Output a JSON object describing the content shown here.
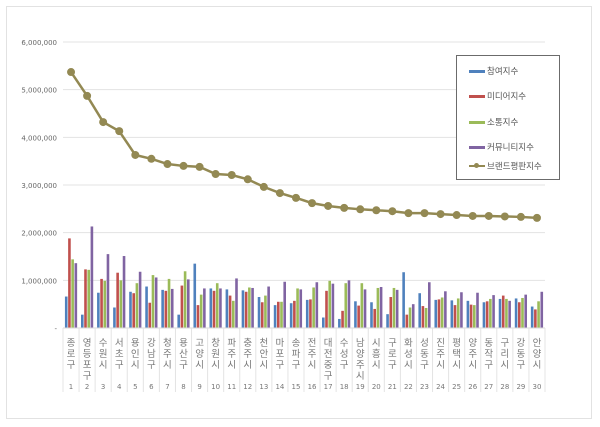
{
  "chart_data": {
    "type": "bar+line",
    "title": "",
    "xlabel": "",
    "ylabel": "",
    "ylim": [
      0,
      6000000
    ],
    "yticks": [
      "-",
      "1,000,000",
      "2,000,000",
      "3,000,000",
      "4,000,000",
      "5,000,000",
      "6,000,000"
    ],
    "grid": true,
    "legend_position": "top-right",
    "categories": [
      "종로구",
      "영등포구",
      "수원시",
      "서초구",
      "용인시",
      "강남구",
      "청주시",
      "용산구",
      "고양시",
      "창원시",
      "파주시",
      "충주시",
      "천안시",
      "마포구",
      "송파구",
      "전주시",
      "대전 중구",
      "수성구",
      "남양주시",
      "시흥시",
      "구로구",
      "화성시",
      "성동구",
      "진주시",
      "평택시",
      "양주시",
      "동작구",
      "구리시",
      "강동구",
      "안양시"
    ],
    "ranks": [
      "1",
      "2",
      "3",
      "4",
      "5",
      "6",
      "7",
      "8",
      "9",
      "10",
      "11",
      "12",
      "13",
      "14",
      "15",
      "16",
      "17",
      "18",
      "19",
      "20",
      "21",
      "22",
      "23",
      "24",
      "25",
      "26",
      "27",
      "28",
      "29",
      "30"
    ],
    "series": [
      {
        "name": "참여지수",
        "type": "bar",
        "color": "#4f81bd",
        "values": [
          660000,
          280000,
          740000,
          430000,
          760000,
          870000,
          800000,
          280000,
          1350000,
          830000,
          810000,
          790000,
          650000,
          480000,
          520000,
          590000,
          220000,
          190000,
          560000,
          540000,
          290000,
          1170000,
          730000,
          590000,
          580000,
          570000,
          540000,
          610000,
          620000,
          450000
        ]
      },
      {
        "name": "미디어지수",
        "type": "bar",
        "color": "#c0504d",
        "values": [
          1880000,
          1230000,
          1030000,
          1160000,
          730000,
          530000,
          780000,
          890000,
          480000,
          780000,
          680000,
          760000,
          540000,
          550000,
          570000,
          600000,
          780000,
          360000,
          470000,
          400000,
          650000,
          280000,
          460000,
          600000,
          480000,
          490000,
          560000,
          680000,
          540000,
          390000
        ]
      },
      {
        "name": "소통지수",
        "type": "bar",
        "color": "#9bbb59",
        "values": [
          1440000,
          1220000,
          990000,
          1000000,
          940000,
          1110000,
          1030000,
          1190000,
          700000,
          940000,
          570000,
          850000,
          680000,
          550000,
          830000,
          850000,
          990000,
          940000,
          940000,
          840000,
          840000,
          430000,
          420000,
          640000,
          620000,
          480000,
          610000,
          610000,
          630000,
          560000
        ]
      },
      {
        "name": "커뮤니티지수",
        "type": "bar",
        "color": "#8064a2",
        "values": [
          1360000,
          2130000,
          1550000,
          1510000,
          1180000,
          1060000,
          820000,
          1020000,
          830000,
          830000,
          1040000,
          840000,
          870000,
          970000,
          810000,
          960000,
          930000,
          1000000,
          810000,
          860000,
          800000,
          500000,
          960000,
          770000,
          750000,
          740000,
          690000,
          570000,
          700000,
          760000
        ]
      },
      {
        "name": "브랜드평판지수",
        "type": "line",
        "color": "#938953",
        "values": [
          5370000,
          4870000,
          4320000,
          4130000,
          3630000,
          3550000,
          3440000,
          3400000,
          3380000,
          3230000,
          3210000,
          3120000,
          2960000,
          2830000,
          2730000,
          2620000,
          2560000,
          2520000,
          2490000,
          2470000,
          2450000,
          2410000,
          2410000,
          2390000,
          2370000,
          2350000,
          2350000,
          2340000,
          2330000,
          2310000
        ]
      }
    ]
  },
  "legend": {
    "items": [
      {
        "label": "참여지수",
        "color": "#4f81bd",
        "kind": "bar"
      },
      {
        "label": "미디어지수",
        "color": "#c0504d",
        "kind": "bar"
      },
      {
        "label": "소통지수",
        "color": "#9bbb59",
        "kind": "bar"
      },
      {
        "label": "커뮤니티지수",
        "color": "#8064a2",
        "kind": "bar"
      },
      {
        "label": "브랜드평판지수",
        "color": "#938953",
        "kind": "line"
      }
    ]
  }
}
